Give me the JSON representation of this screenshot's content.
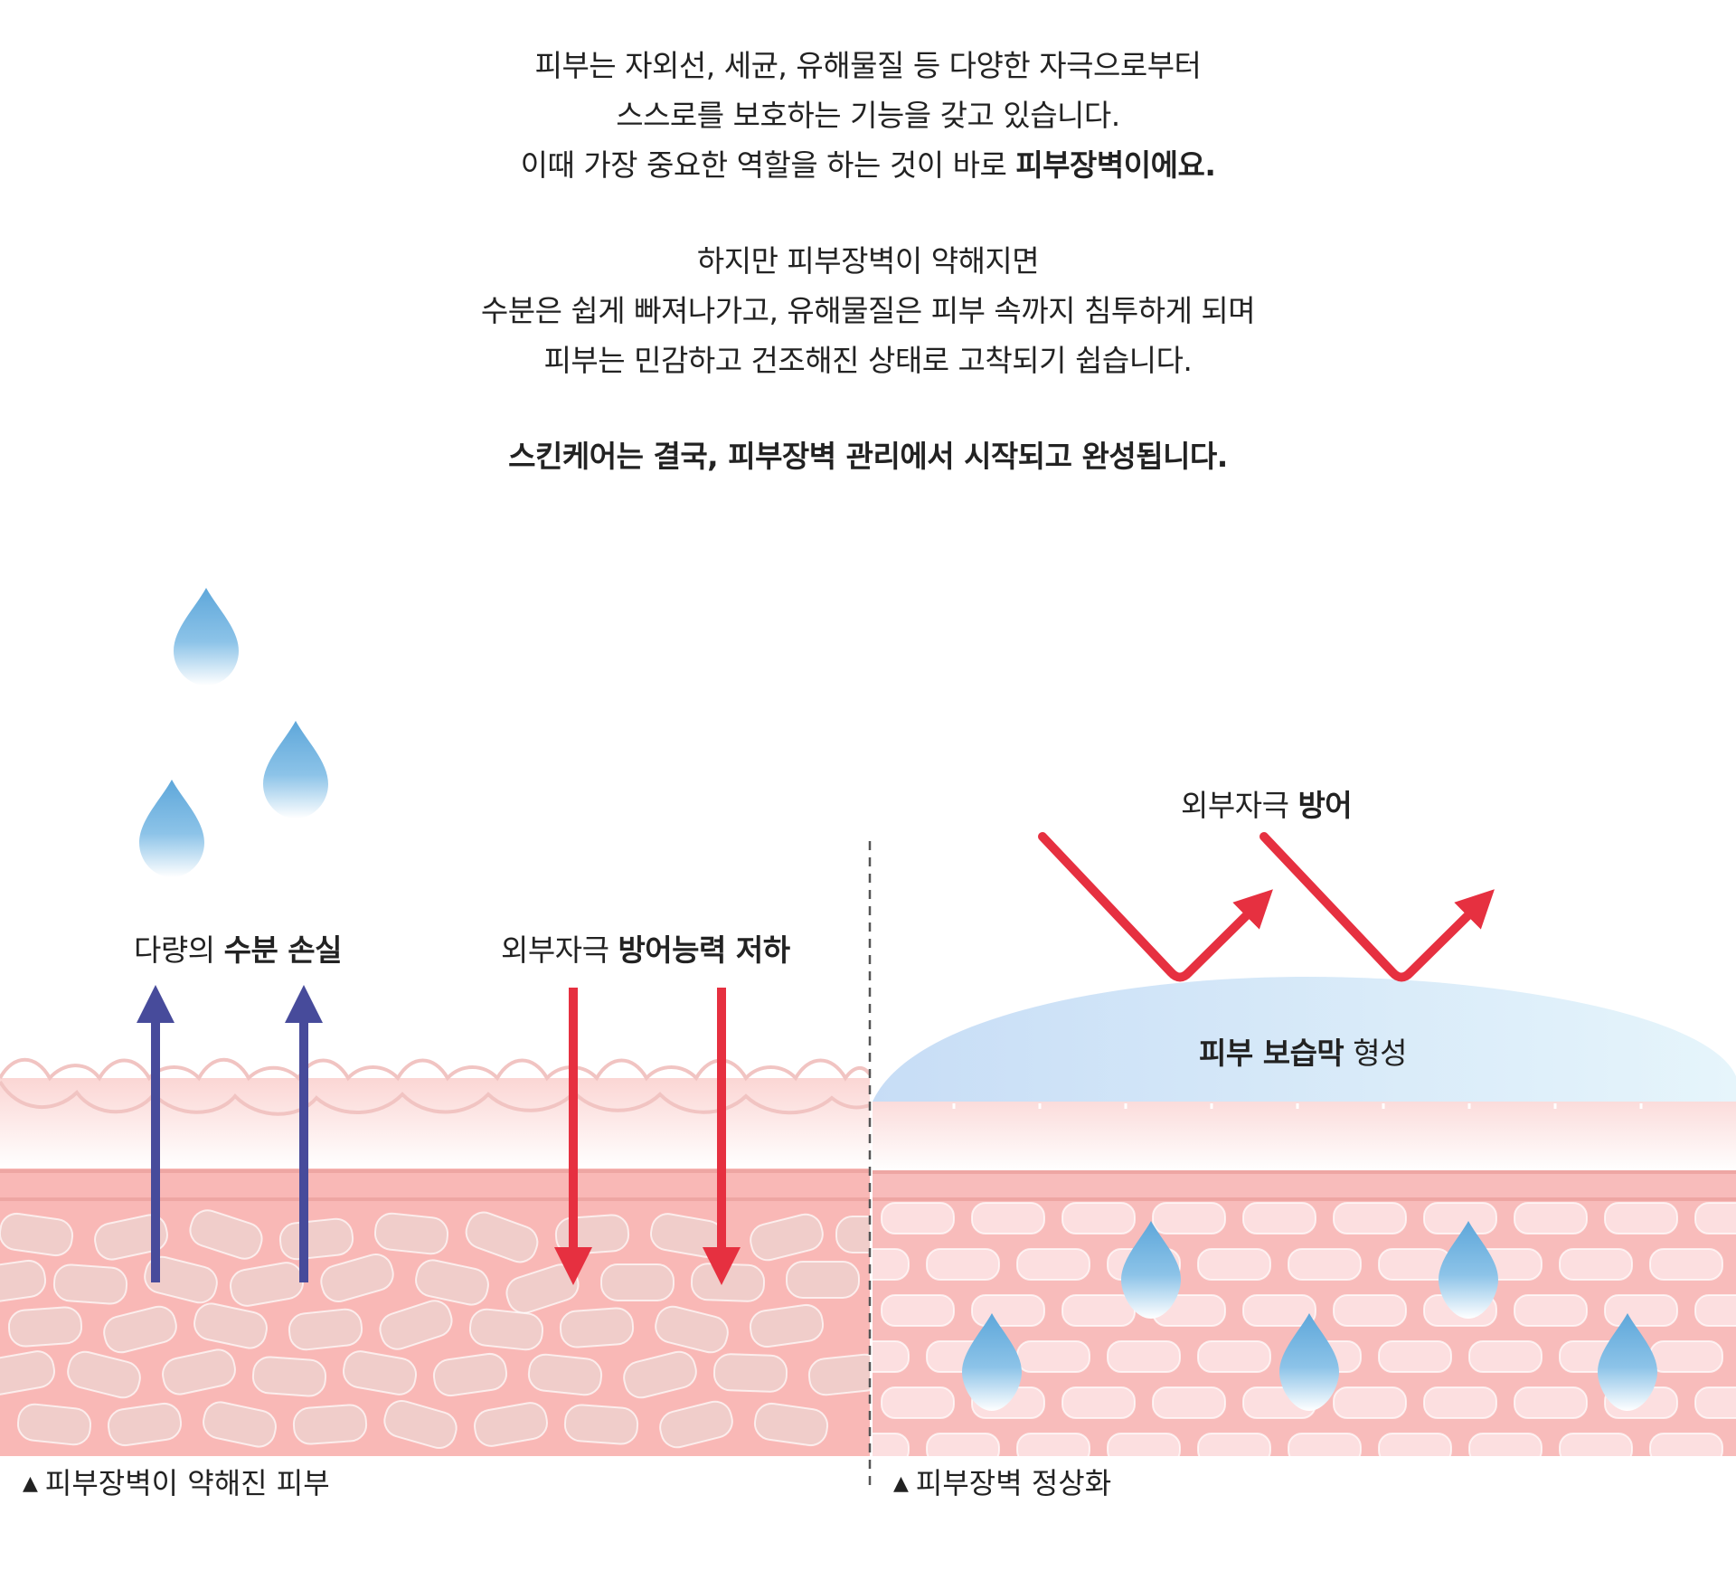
{
  "intro": {
    "line1": "피부는 자외선, 세균, 유해물질 등 다양한 자극으로부터",
    "line2": "스스로를 보호하는 기능을 갖고 있습니다.",
    "line3_normal": "이때 가장 중요한 역할을 하는 것이 바로 ",
    "line3_bold": "피부장벽이에요.",
    "line4": "하지만 피부장벽이 약해지면",
    "line5": "수분은 쉽게 빠져나가고, 유해물질은 피부 속까지 침투하게 되며",
    "line6": "피부는 민감하고 건조해진 상태로 고착되기 쉽습니다.",
    "closing": "스킨케어는 결국, 피부장벽 관리에서 시작되고 완성됩니다."
  },
  "weak_skin": {
    "moisture_label_normal": "다량의 ",
    "moisture_label_bold": "수분 손실",
    "defense_label_normal": "외부자극 ",
    "defense_label_bold": "방어능력 저하",
    "caption_marker": "▲",
    "caption": "피부장벽이 약해진 피부"
  },
  "healthy_skin": {
    "defense_label_normal": "외부자극 ",
    "defense_label_bold": "방어",
    "film_label_bold": "피부 보습막",
    "film_label_normal": " 형성",
    "caption_marker": "▲",
    "caption": "피부장벽 정상화"
  },
  "colors": {
    "moisture_arrow": "#474b9b",
    "stimulus_arrow": "#e63040",
    "skin_base": "#f9b8b6",
    "skin_line": "#eea6a3",
    "drop_top": "#6aaedd",
    "film": "#cfe6f7"
  }
}
